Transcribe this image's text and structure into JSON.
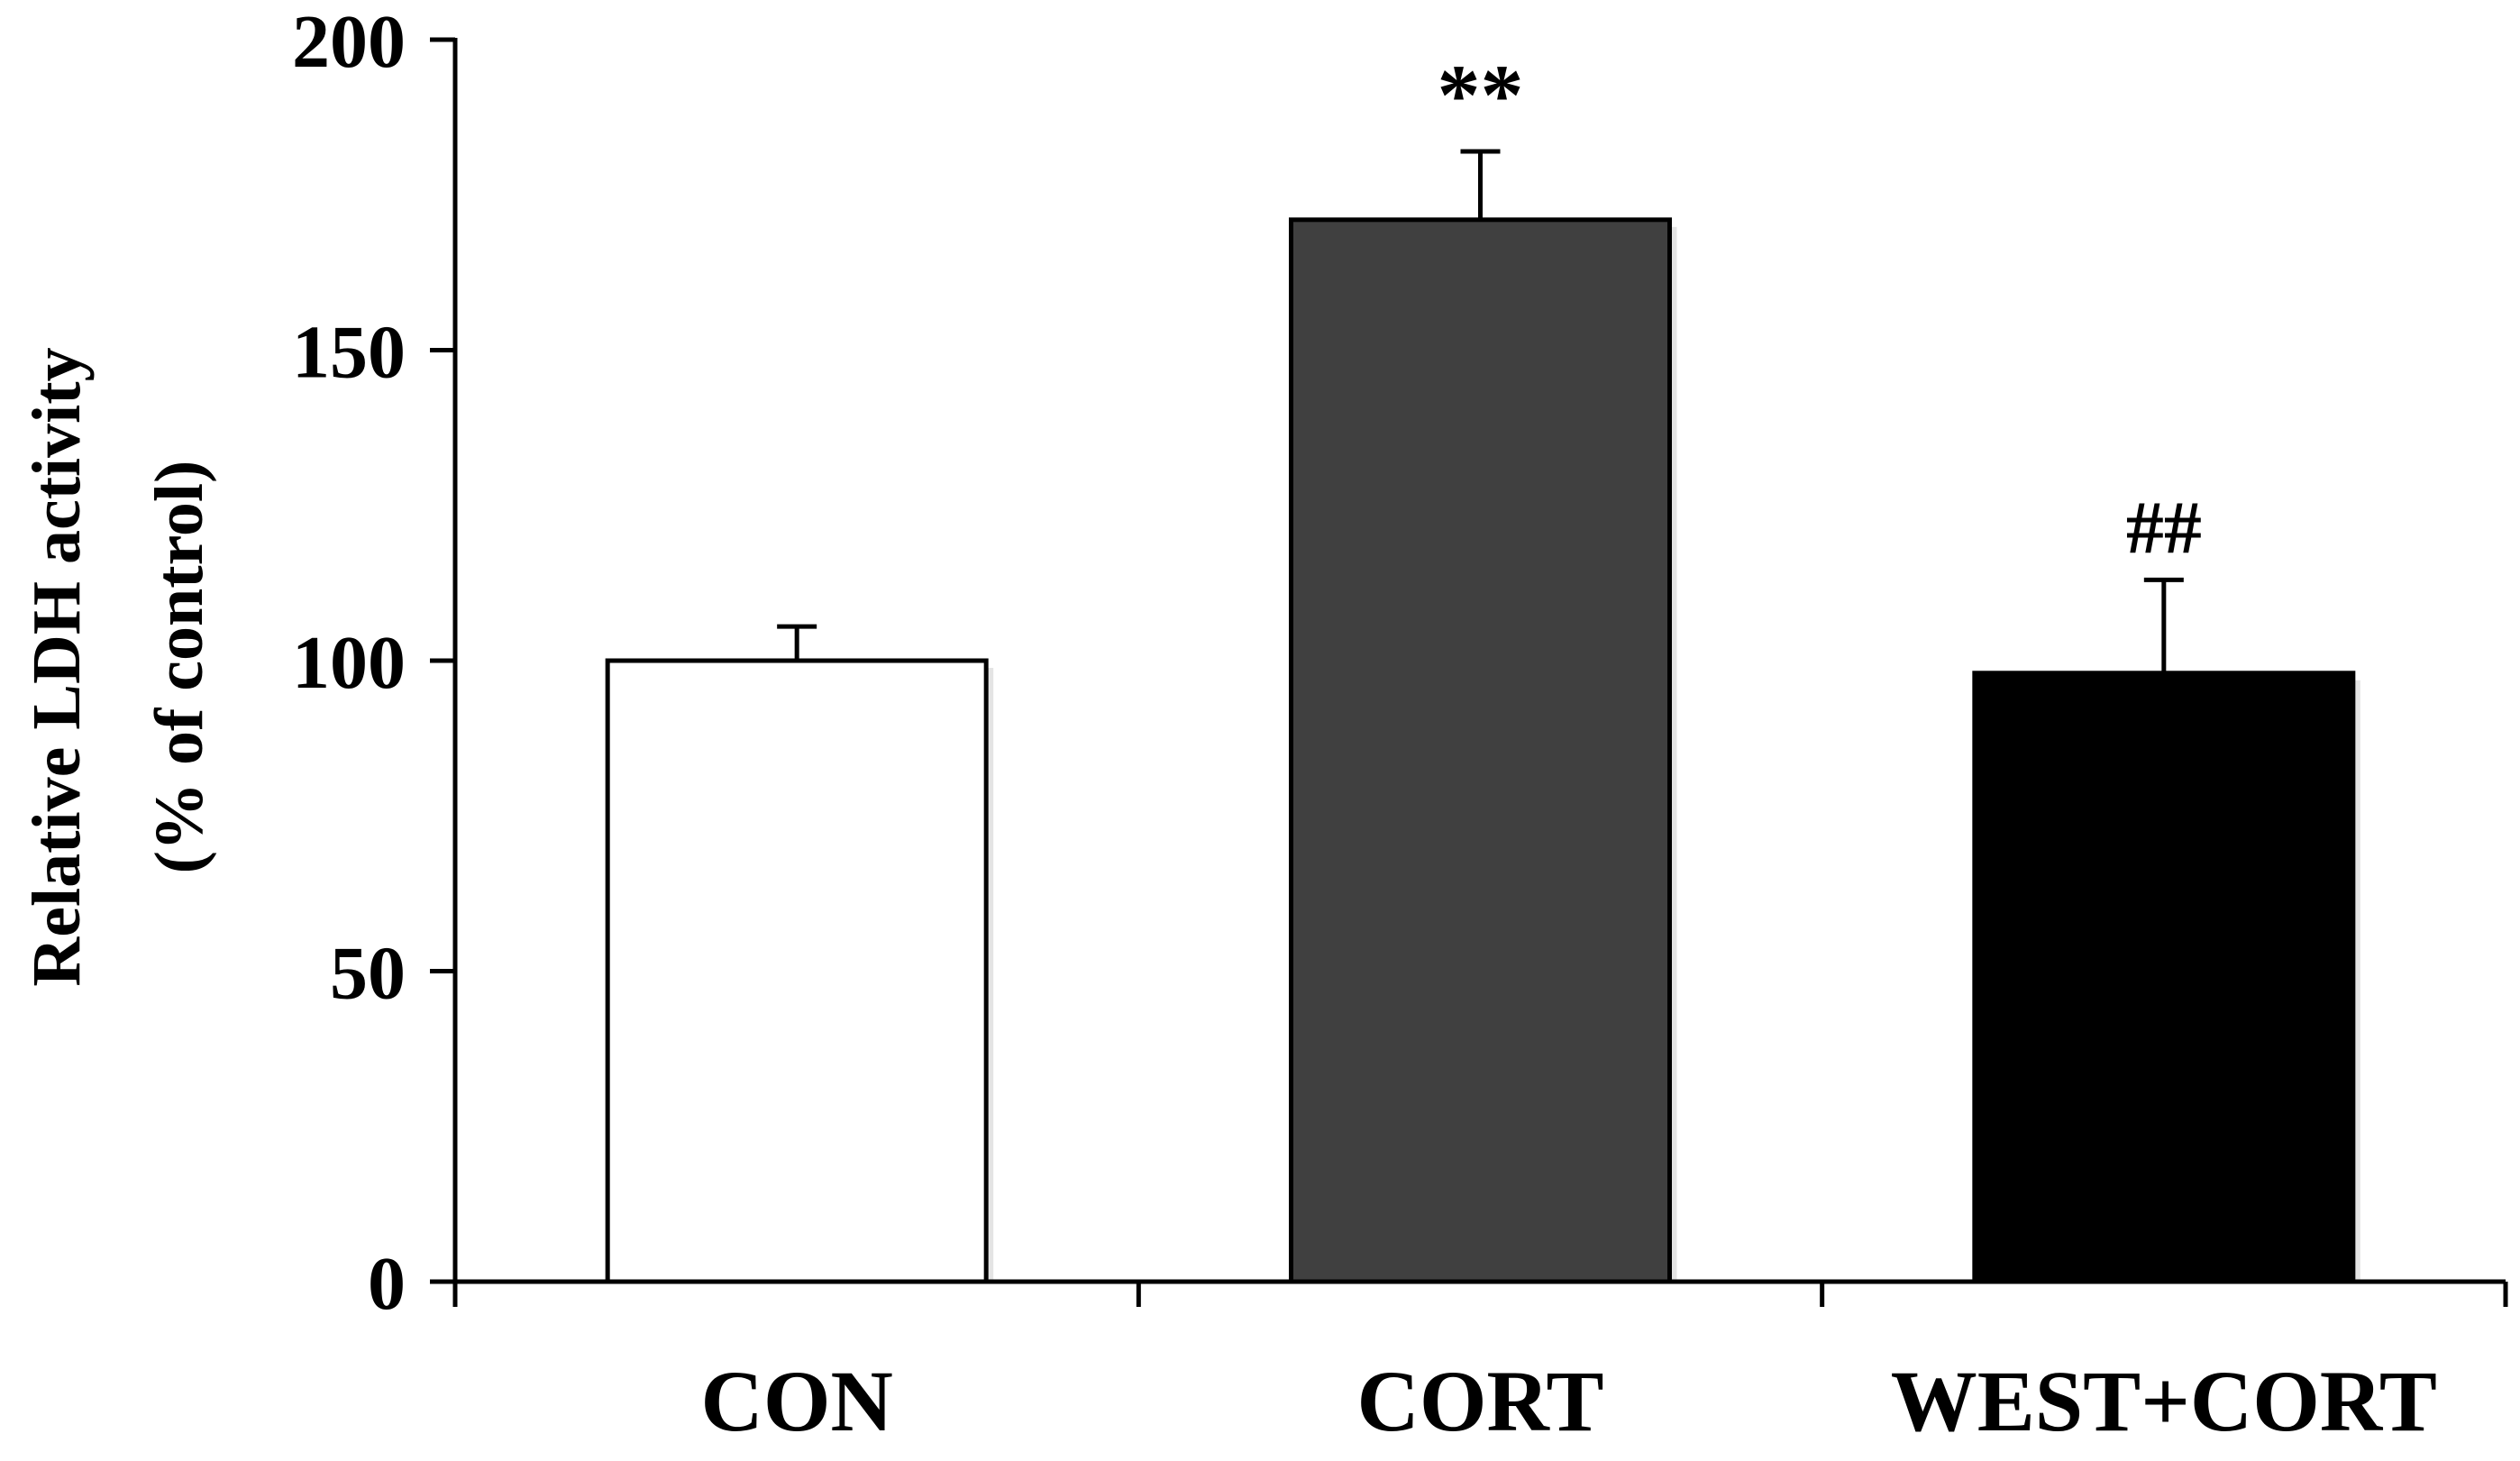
{
  "chart_data": {
    "type": "bar",
    "title": "",
    "xlabel": "",
    "ylabel_lines": [
      "Relative LDH activity",
      "(% of control)"
    ],
    "ylim": [
      0,
      200
    ],
    "yticks": [
      0,
      50,
      100,
      150,
      200
    ],
    "categories": [
      "CON",
      "CORT",
      "WEST+CORT"
    ],
    "values": [
      100,
      171,
      98
    ],
    "errors": [
      5.5,
      11,
      15
    ],
    "annotations": [
      "",
      "**",
      "##"
    ],
    "bar_colors": [
      "#ffffff",
      "#404040",
      "#000000"
    ]
  }
}
